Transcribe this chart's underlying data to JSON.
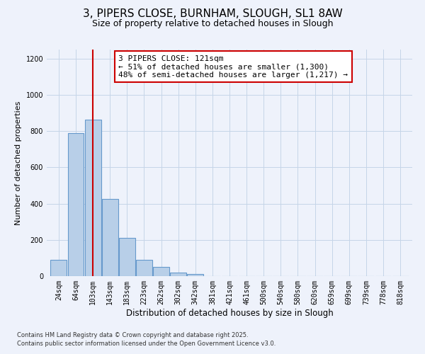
{
  "title": "3, PIPERS CLOSE, BURNHAM, SLOUGH, SL1 8AW",
  "subtitle": "Size of property relative to detached houses in Slough",
  "xlabel": "Distribution of detached houses by size in Slough",
  "ylabel": "Number of detached properties",
  "bar_labels": [
    "24sqm",
    "64sqm",
    "103sqm",
    "143sqm",
    "183sqm",
    "223sqm",
    "262sqm",
    "302sqm",
    "342sqm",
    "381sqm",
    "421sqm",
    "461sqm",
    "500sqm",
    "540sqm",
    "580sqm",
    "620sqm",
    "659sqm",
    "699sqm",
    "739sqm",
    "778sqm",
    "818sqm"
  ],
  "bar_values": [
    90,
    790,
    865,
    425,
    210,
    90,
    50,
    20,
    10,
    0,
    0,
    0,
    0,
    0,
    0,
    0,
    0,
    0,
    0,
    0,
    0
  ],
  "bar_color": "#b8cfe8",
  "bar_edgecolor": "#6699cc",
  "bar_linewidth": 0.8,
  "vline_x_index": 2,
  "vline_color": "#cc0000",
  "annotation_title": "3 PIPERS CLOSE: 121sqm",
  "annotation_line1": "← 51% of detached houses are smaller (1,300)",
  "annotation_line2": "48% of semi-detached houses are larger (1,217) →",
  "annotation_box_edgecolor": "#cc0000",
  "annotation_box_facecolor": "#ffffff",
  "ylim": [
    0,
    1250
  ],
  "yticks": [
    0,
    200,
    400,
    600,
    800,
    1000,
    1200
  ],
  "background_color": "#eef2fb",
  "grid_color": "#c5d5e8",
  "footnote1": "Contains HM Land Registry data © Crown copyright and database right 2025.",
  "footnote2": "Contains public sector information licensed under the Open Government Licence v3.0.",
  "title_fontsize": 11,
  "subtitle_fontsize": 9,
  "xlabel_fontsize": 8.5,
  "ylabel_fontsize": 8,
  "tick_fontsize": 7,
  "annotation_fontsize": 8,
  "footnote_fontsize": 6
}
